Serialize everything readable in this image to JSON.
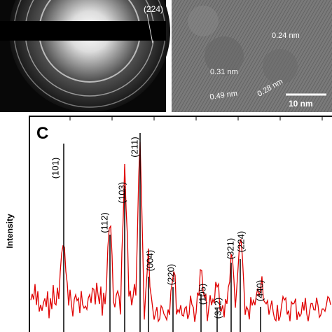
{
  "panel_a": {
    "label": "(224)"
  },
  "panel_b": {
    "labels": [
      "0.24 nm",
      "0.31 nm",
      "0.49 nm",
      "0.28 nm"
    ],
    "scale_bar": "10 nm"
  },
  "panel_c": {
    "label": "C",
    "y_axis_label": "Intensity",
    "peaks": [
      "(101)",
      "(112)",
      "(103)",
      "(211)",
      "(004)",
      "(220)",
      "(105)",
      "(312)",
      "(321)",
      "(224)",
      "(440)"
    ]
  }
}
